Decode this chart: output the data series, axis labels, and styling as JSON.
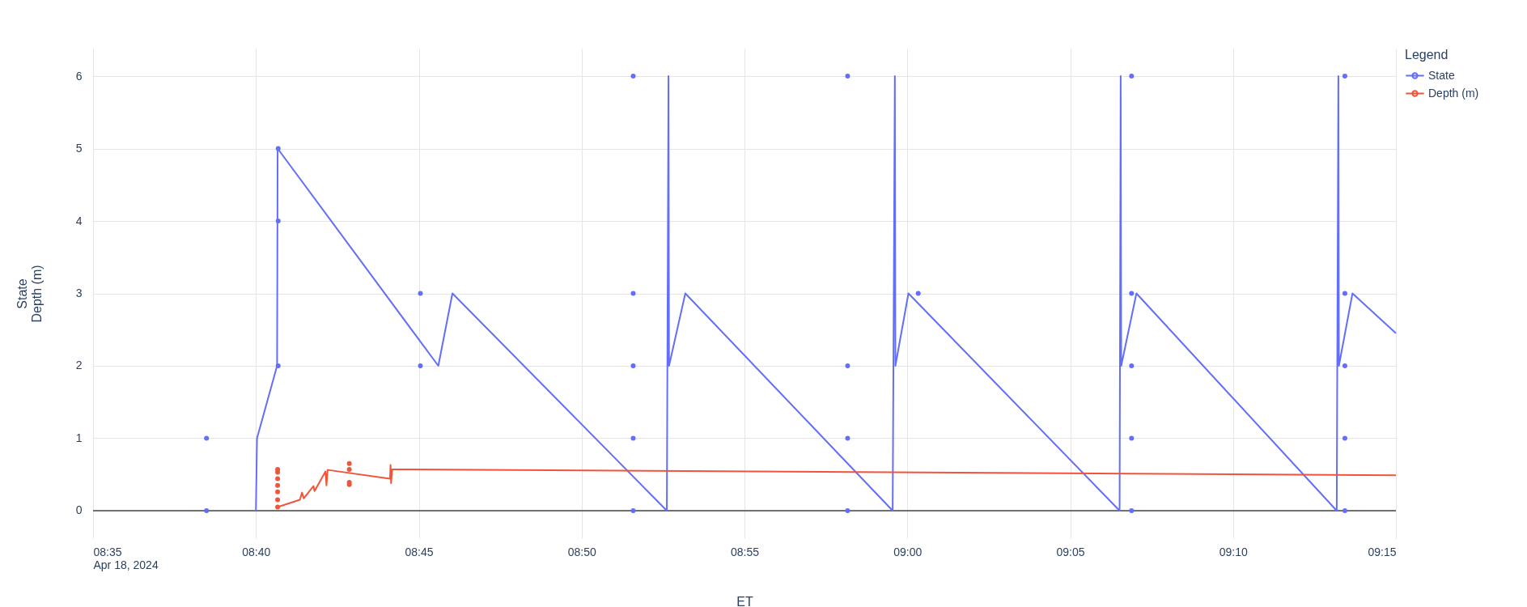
{
  "chart_data": {
    "type": "line",
    "xlabel": "ET",
    "ylabel": "State\nDepth (m)",
    "legend_title": "Legend",
    "legend": "top right",
    "grid": true,
    "line_style": "solid",
    "xlim": [
      "2024-04-18T08:35:00",
      "2024-04-18T09:15:00"
    ],
    "xticks": [
      {
        "value": "2024-04-18T08:35:00",
        "label": "08:35\nApr 18, 2024"
      },
      {
        "value": "2024-04-18T08:40:00",
        "label": "08:40"
      },
      {
        "value": "2024-04-18T08:45:00",
        "label": "08:45"
      },
      {
        "value": "2024-04-18T08:50:00",
        "label": "08:50"
      },
      {
        "value": "2024-04-18T08:55:00",
        "label": "08:55"
      },
      {
        "value": "2024-04-18T09:00:00",
        "label": "09:00"
      },
      {
        "value": "2024-04-18T09:05:00",
        "label": "09:05"
      },
      {
        "value": "2024-04-18T09:10:00",
        "label": "09:10"
      },
      {
        "value": "2024-04-18T09:15:00",
        "label": "09:15"
      }
    ],
    "ylim": [
      -0.38,
      6.38
    ],
    "yticks": [
      0,
      1,
      2,
      3,
      4,
      5,
      6
    ],
    "ref_lines": [
      {
        "axis": "y",
        "value": 0,
        "color": "#444444"
      }
    ],
    "series": [
      {
        "name": "State",
        "type": "line",
        "color": "#636efa",
        "x": [
          "2024-04-18T08:40:00",
          "2024-04-18T08:40:02",
          "2024-04-18T08:40:39",
          "2024-04-18T08:40:40",
          "2024-04-18T08:45:36",
          "2024-04-18T08:46:02",
          "2024-04-18T08:52:37",
          "2024-04-18T08:52:40",
          "2024-04-18T08:52:41",
          "2024-04-18T08:53:11",
          "2024-04-18T08:59:33",
          "2024-04-18T08:59:37",
          "2024-04-18T08:59:38",
          "2024-04-18T09:00:02",
          "2024-04-18T09:06:31",
          "2024-04-18T09:06:33",
          "2024-04-18T09:06:34",
          "2024-04-18T09:07:02",
          "2024-04-18T09:13:11",
          "2024-04-18T09:13:14",
          "2024-04-18T09:13:15",
          "2024-04-18T09:13:40",
          "2024-04-18T09:15:00"
        ],
        "values": [
          0,
          1,
          2,
          5,
          2,
          3,
          0,
          6,
          2,
          3,
          0,
          6,
          2,
          3,
          0,
          6,
          2,
          3,
          0,
          6,
          2,
          3,
          2.45
        ]
      },
      {
        "name": "Depth (m)",
        "type": "line",
        "color": "#ef553b",
        "x": [
          "2024-04-18T08:40:40",
          "2024-04-18T08:41:21",
          "2024-04-18T08:41:25",
          "2024-04-18T08:41:28",
          "2024-04-18T08:41:46",
          "2024-04-18T08:41:48",
          "2024-04-18T08:42:08",
          "2024-04-18T08:42:10",
          "2024-04-18T08:42:12",
          "2024-04-18T08:42:15",
          "2024-04-18T08:44:07",
          "2024-04-18T08:44:08",
          "2024-04-18T08:44:09",
          "2024-04-18T08:44:11",
          "2024-04-18T09:15:00"
        ],
        "values": [
          0.05,
          0.15,
          0.25,
          0.17,
          0.34,
          0.27,
          0.54,
          0.35,
          0.56,
          0.56,
          0.44,
          0.63,
          0.38,
          0.57,
          0.49
        ]
      },
      {
        "type": "scatter",
        "marker": "circle",
        "color": "#636efa",
        "x": [
          "2024-04-18T08:38:29",
          "2024-04-18T08:38:29",
          "2024-04-18T08:40:41",
          "2024-04-18T08:40:41",
          "2024-04-18T08:40:41",
          "2024-04-18T08:45:03",
          "2024-04-18T08:45:03",
          "2024-04-18T08:51:35",
          "2024-04-18T08:51:35",
          "2024-04-18T08:51:35",
          "2024-04-18T08:51:35",
          "2024-04-18T08:51:35",
          "2024-04-18T08:58:10",
          "2024-04-18T08:58:10",
          "2024-04-18T08:58:10",
          "2024-04-18T08:58:10",
          "2024-04-18T09:00:20",
          "2024-04-18T09:06:53",
          "2024-04-18T09:06:53",
          "2024-04-18T09:06:53",
          "2024-04-18T09:06:53",
          "2024-04-18T09:06:53",
          "2024-04-18T09:13:26",
          "2024-04-18T09:13:26",
          "2024-04-18T09:13:26",
          "2024-04-18T09:13:26",
          "2024-04-18T09:13:26"
        ],
        "values": [
          0,
          1,
          2,
          4,
          5,
          2,
          3,
          0,
          1,
          2,
          3,
          6,
          0,
          1,
          2,
          6,
          3,
          0,
          1,
          2,
          3,
          6,
          0,
          1,
          2,
          3,
          6
        ]
      },
      {
        "type": "scatter",
        "marker": "circle",
        "color": "#ef553b",
        "x": [
          "2024-04-18T08:40:40",
          "2024-04-18T08:40:40",
          "2024-04-18T08:40:40",
          "2024-04-18T08:40:40",
          "2024-04-18T08:40:40",
          "2024-04-18T08:40:40",
          "2024-04-18T08:40:40",
          "2024-04-18T08:42:52",
          "2024-04-18T08:42:52",
          "2024-04-18T08:42:52",
          "2024-04-18T08:42:52"
        ],
        "values": [
          0.05,
          0.15,
          0.26,
          0.35,
          0.44,
          0.53,
          0.57,
          0.36,
          0.39,
          0.57,
          0.65
        ]
      }
    ]
  }
}
